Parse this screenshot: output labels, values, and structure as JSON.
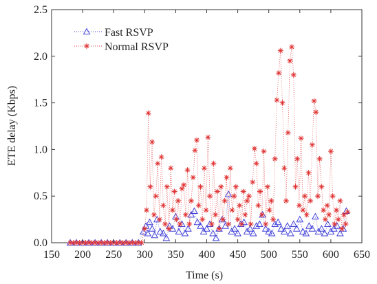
{
  "chart_data": {
    "type": "scatter",
    "xlabel": "Time (s)",
    "ylabel": "ETE delay (Kbps)",
    "xlim": [
      150,
      650
    ],
    "ylim": [
      0,
      2.5
    ],
    "x_ticks": [
      150,
      200,
      250,
      300,
      350,
      400,
      450,
      500,
      550,
      600,
      650
    ],
    "y_ticks": [
      0.0,
      0.5,
      1.0,
      1.5,
      2.0,
      2.5
    ],
    "x_tick_labels": [
      "150",
      "200",
      "250",
      "300",
      "350",
      "400",
      "450",
      "500",
      "550",
      "600",
      "650"
    ],
    "y_tick_labels": [
      "0.0",
      "0.5",
      "1.0",
      "1.5",
      "2.0",
      "2.5"
    ],
    "grid": false,
    "legend_position": "top-left",
    "series": [
      {
        "name": "Fast RSVP",
        "color": "#4040d8",
        "marker": "triangle",
        "x": [
          180,
          190,
          200,
          210,
          220,
          230,
          240,
          250,
          260,
          270,
          280,
          290,
          298,
          302,
          305,
          308,
          312,
          316,
          320,
          325,
          330,
          335,
          340,
          345,
          350,
          355,
          360,
          365,
          370,
          375,
          380,
          385,
          390,
          395,
          400,
          405,
          410,
          415,
          420,
          425,
          430,
          435,
          440,
          445,
          450,
          455,
          460,
          465,
          470,
          475,
          480,
          485,
          490,
          495,
          500,
          505,
          510,
          515,
          520,
          525,
          530,
          535,
          540,
          545,
          550,
          555,
          560,
          565,
          570,
          575,
          580,
          585,
          590,
          595,
          600,
          605,
          610,
          615,
          620,
          625
        ],
        "y": [
          0,
          0,
          0,
          0,
          0,
          0,
          0,
          0,
          0,
          0,
          0,
          0,
          0.12,
          0.18,
          0.1,
          0.22,
          0.15,
          0.08,
          0.25,
          0.12,
          0.1,
          0.05,
          0.18,
          0.15,
          0.28,
          0.12,
          0.2,
          0.1,
          0.15,
          0.3,
          0.34,
          0.22,
          0.18,
          0.12,
          0.15,
          0.2,
          0.1,
          0.05,
          0.15,
          0.25,
          0.18,
          0.52,
          0.12,
          0.15,
          0.1,
          0.2,
          0.22,
          0.12,
          0.15,
          0.1,
          0.18,
          0.2,
          0.3,
          0.15,
          0.12,
          0.1,
          0.2,
          0.22,
          0.15,
          0.12,
          0.18,
          0.1,
          0.2,
          0.15,
          0.25,
          0.12,
          0.1,
          0.18,
          0.15,
          0.28,
          0.12,
          0.15,
          0.1,
          0.2,
          0.12,
          0.15,
          0.18,
          0.1,
          0.15,
          0.34
        ]
      },
      {
        "name": "Normal RSVP",
        "color": "#e03030",
        "marker": "star",
        "x": [
          180,
          185,
          190,
          195,
          200,
          205,
          210,
          215,
          220,
          225,
          230,
          235,
          240,
          245,
          250,
          255,
          260,
          265,
          270,
          275,
          280,
          285,
          290,
          295,
          300,
          303,
          306,
          309,
          312,
          315,
          318,
          321,
          324,
          327,
          330,
          333,
          336,
          339,
          342,
          345,
          348,
          351,
          354,
          357,
          360,
          363,
          366,
          369,
          372,
          375,
          378,
          381,
          384,
          387,
          390,
          393,
          396,
          399,
          402,
          405,
          408,
          411,
          414,
          417,
          420,
          423,
          426,
          429,
          432,
          435,
          438,
          441,
          444,
          447,
          450,
          453,
          456,
          459,
          462,
          465,
          468,
          471,
          474,
          477,
          480,
          483,
          486,
          489,
          492,
          495,
          498,
          501,
          504,
          507,
          510,
          513,
          516,
          519,
          522,
          525,
          528,
          531,
          534,
          537,
          540,
          543,
          546,
          549,
          552,
          555,
          558,
          561,
          564,
          567,
          570,
          573,
          576,
          579,
          582,
          585,
          588,
          591,
          594,
          597,
          600,
          603,
          606,
          609,
          612,
          615,
          618,
          621,
          624,
          627
        ],
        "y": [
          0,
          0,
          0,
          0,
          0,
          0,
          0,
          0,
          0,
          0,
          0,
          0,
          0,
          0,
          0,
          0,
          0,
          0,
          0,
          0,
          0,
          0,
          0,
          0,
          0.15,
          0.35,
          1.39,
          0.6,
          1.08,
          0.3,
          0.5,
          0.85,
          0.25,
          0.92,
          0.4,
          0.2,
          0.6,
          0.15,
          0.8,
          0.35,
          0.55,
          0.25,
          0.45,
          0.2,
          0.58,
          0.62,
          0.3,
          0.78,
          0.2,
          0.45,
          0.7,
          0.99,
          1.1,
          0.4,
          0.6,
          0.25,
          0.8,
          0.35,
          1.13,
          0.5,
          0.2,
          0.85,
          0.3,
          0.55,
          0.15,
          0.6,
          0.25,
          0.45,
          0.7,
          0.2,
          0.8,
          0.35,
          0.5,
          0.6,
          0.25,
          0.4,
          0.2,
          0.55,
          0.3,
          0.45,
          0.5,
          0.2,
          0.65,
          1.01,
          0.85,
          0.4,
          0.55,
          0.3,
          0.98,
          0.2,
          0.6,
          0.35,
          0.45,
          0.25,
          0.9,
          1.53,
          1.82,
          2.06,
          1.5,
          0.8,
          0.45,
          1.18,
          1.95,
          2.1,
          1.8,
          0.6,
          0.9,
          0.4,
          1.12,
          0.35,
          0.5,
          0.3,
          0.75,
          0.45,
          1.05,
          1.52,
          1.4,
          0.5,
          0.9,
          0.6,
          0.35,
          0.25,
          0.4,
          0.3,
          0.98,
          0.5,
          0.2,
          0.35,
          0.25,
          0.45,
          0.15,
          0.3,
          0.2,
          0.33
        ]
      }
    ]
  }
}
